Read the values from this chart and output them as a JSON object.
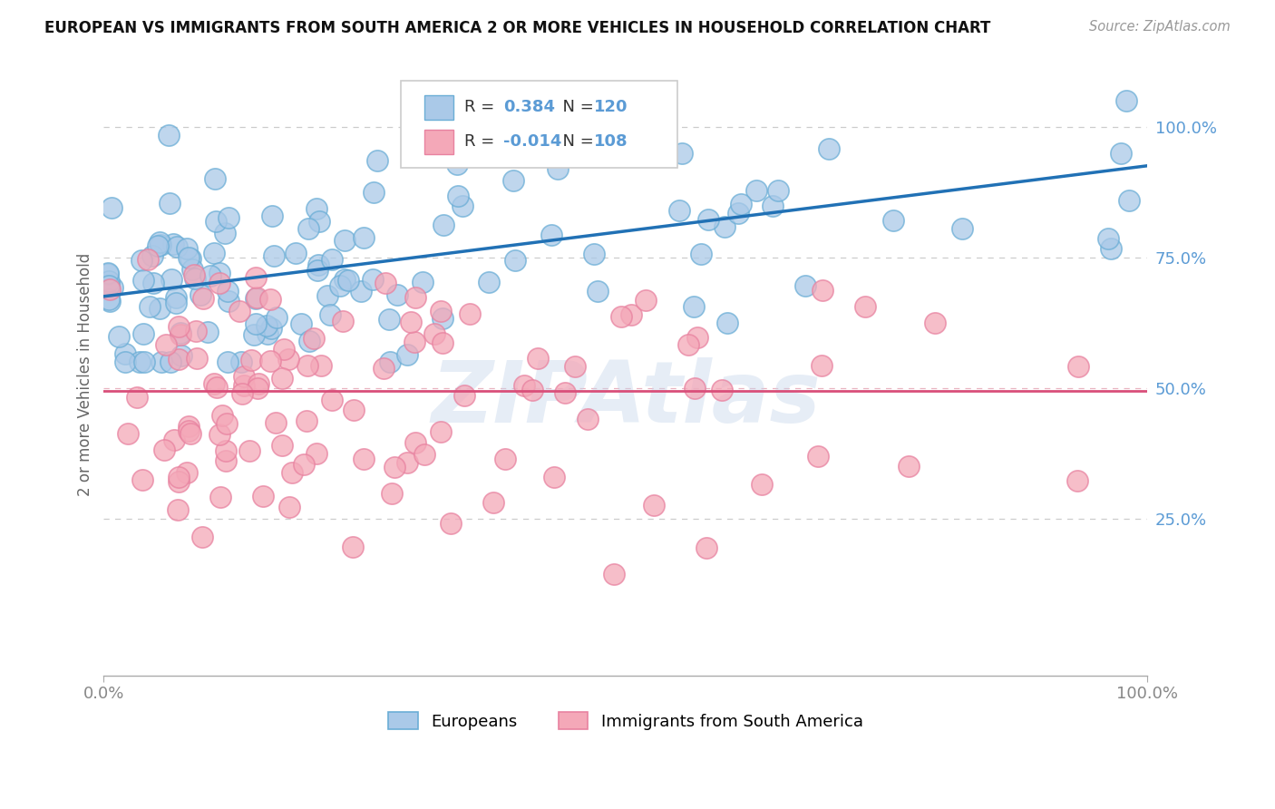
{
  "title": "EUROPEAN VS IMMIGRANTS FROM SOUTH AMERICA 2 OR MORE VEHICLES IN HOUSEHOLD CORRELATION CHART",
  "source": "Source: ZipAtlas.com",
  "ylabel": "2 or more Vehicles in Household",
  "xlim": [
    0.0,
    1.0
  ],
  "ylim": [
    -0.05,
    1.1
  ],
  "blue_R": 0.384,
  "blue_N": 120,
  "pink_R": -0.014,
  "pink_N": 108,
  "blue_color": "#aac9e8",
  "pink_color": "#f4a8b8",
  "blue_edge_color": "#6baed6",
  "pink_edge_color": "#e882a0",
  "blue_line_color": "#2171b5",
  "pink_line_color": "#d94f7a",
  "watermark": "ZIPAtlas",
  "legend_label_blue": "Europeans",
  "legend_label_pink": "Immigrants from South America",
  "background_color": "#ffffff",
  "grid_color_light": "#cccccc",
  "grid_color_pink": "#e8b4c0",
  "blue_line_start_y": 0.675,
  "blue_line_end_y": 0.925,
  "pink_line_y": 0.495,
  "ytick_color": "#5b9bd5",
  "xtick_color": "#888888"
}
